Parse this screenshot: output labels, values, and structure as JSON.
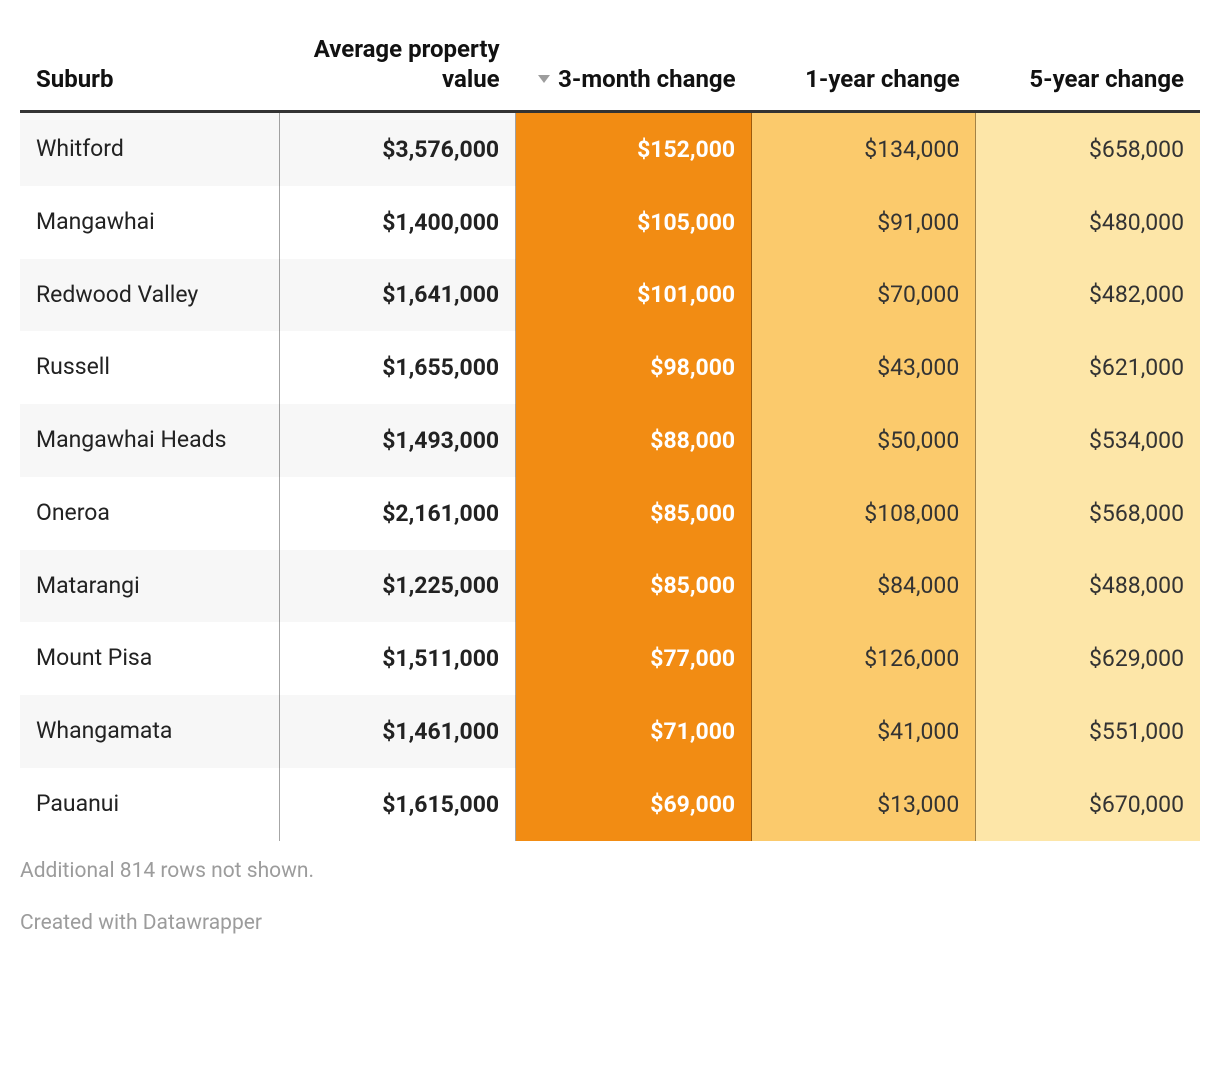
{
  "table": {
    "columns": {
      "suburb": {
        "label": "Suburb",
        "width_pct": 22,
        "align": "left"
      },
      "value": {
        "label": "Average property value",
        "width_pct": 20,
        "align": "right"
      },
      "three_mo": {
        "label": "3-month change",
        "width_pct": 20,
        "align": "right",
        "sorted_desc": true
      },
      "one_yr": {
        "label": "1-year change",
        "width_pct": 19,
        "align": "right"
      },
      "five_yr": {
        "label": "5-year change",
        "width_pct": 19,
        "align": "right"
      }
    },
    "rows": [
      {
        "suburb": "Whitford",
        "value": "$3,576,000",
        "three_mo": "$152,000",
        "one_yr": "$134,000",
        "five_yr": "$658,000"
      },
      {
        "suburb": "Mangawhai",
        "value": "$1,400,000",
        "three_mo": "$105,000",
        "one_yr": "$91,000",
        "five_yr": "$480,000"
      },
      {
        "suburb": "Redwood Valley",
        "value": "$1,641,000",
        "three_mo": "$101,000",
        "one_yr": "$70,000",
        "five_yr": "$482,000"
      },
      {
        "suburb": "Russell",
        "value": "$1,655,000",
        "three_mo": "$98,000",
        "one_yr": "$43,000",
        "five_yr": "$621,000"
      },
      {
        "suburb": "Mangawhai Heads",
        "value": "$1,493,000",
        "three_mo": "$88,000",
        "one_yr": "$50,000",
        "five_yr": "$534,000"
      },
      {
        "suburb": "Oneroa",
        "value": "$2,161,000",
        "three_mo": "$85,000",
        "one_yr": "$108,000",
        "five_yr": "$568,000"
      },
      {
        "suburb": "Matarangi",
        "value": "$1,225,000",
        "three_mo": "$85,000",
        "one_yr": "$84,000",
        "five_yr": "$488,000"
      },
      {
        "suburb": "Mount Pisa",
        "value": "$1,511,000",
        "three_mo": "$77,000",
        "one_yr": "$126,000",
        "five_yr": "$629,000"
      },
      {
        "suburb": "Whangamata",
        "value": "$1,461,000",
        "three_mo": "$71,000",
        "one_yr": "$41,000",
        "five_yr": "$551,000"
      },
      {
        "suburb": "Pauanui",
        "value": "$1,615,000",
        "three_mo": "$69,000",
        "one_yr": "$13,000",
        "five_yr": "$670,000"
      }
    ],
    "heat_colors": {
      "three_mo": {
        "bg": "#f28c13",
        "text": "#ffffff"
      },
      "one_yr": {
        "bg": "#fbca6c",
        "text": "#333333"
      },
      "five_yr": {
        "bg": "#fde6a8",
        "text": "#333333"
      }
    },
    "stripe_bg": "#f7f7f7",
    "header_border_color": "#333333",
    "cell_border_color": "rgba(0,0,0,0.35)",
    "font_sizes": {
      "header_pt": 18,
      "cell_pt": 17,
      "footer_pt": 16
    }
  },
  "footer": {
    "truncation_note": "Additional 814 rows not shown.",
    "credit": "Created with Datawrapper"
  }
}
